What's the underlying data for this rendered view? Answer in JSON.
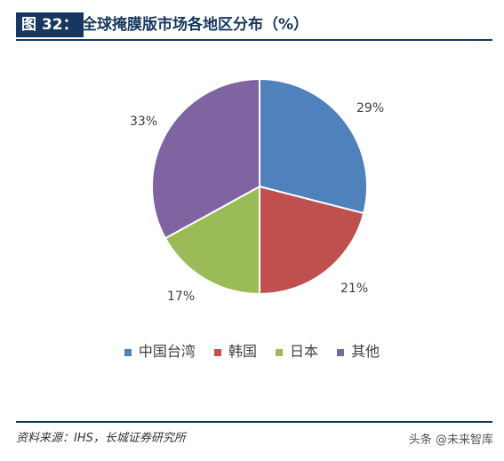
{
  "header": {
    "figure_tag": "图 32：",
    "title": "全球掩膜版市场各地区分布（%）"
  },
  "chart_data": {
    "type": "pie",
    "series": [
      {
        "name": "中国台湾",
        "value": 29,
        "label": "29%",
        "color": "#4f81bd"
      },
      {
        "name": "韩国",
        "value": 21,
        "label": "21%",
        "color": "#c0504d"
      },
      {
        "name": "日本",
        "value": 17,
        "label": "17%",
        "color": "#9bbb59"
      },
      {
        "name": "其他",
        "value": 33,
        "label": "33%",
        "color": "#8064a2"
      }
    ],
    "legend_position": "bottom"
  },
  "source": "资料来源：IHS，长城证券研究所",
  "watermark": "头条 @未来智库"
}
